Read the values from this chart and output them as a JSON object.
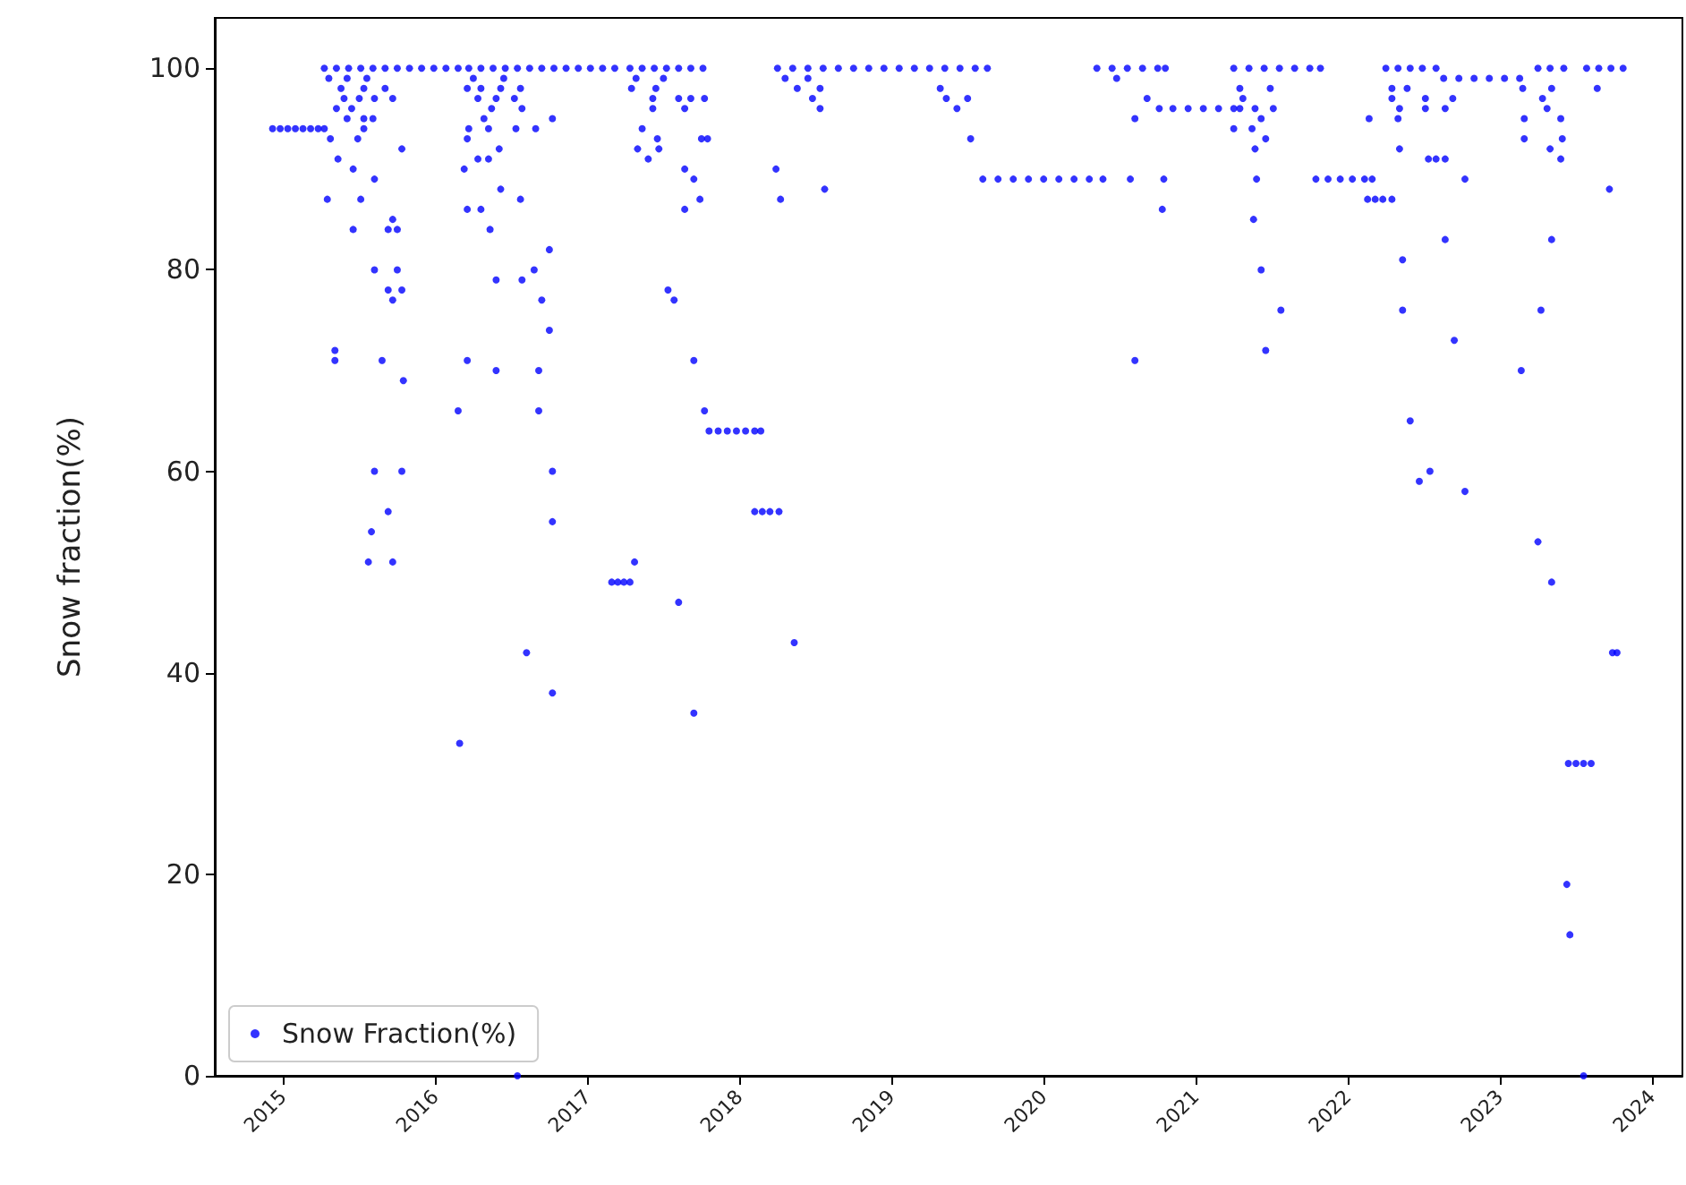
{
  "chart_data": {
    "type": "scatter",
    "ylabel": "Snow fraction(%)",
    "xlim": [
      2014.55,
      2024.2
    ],
    "xticks": [
      2015,
      2016,
      2017,
      2018,
      2019,
      2020,
      2021,
      2022,
      2023,
      2024
    ],
    "ylim": [
      0,
      105
    ],
    "yticks": [
      0,
      20,
      40,
      60,
      80,
      100
    ],
    "grid": false,
    "legend": "bottom left",
    "marker": "circle",
    "series": [
      {
        "name": "Snow Fraction(%)",
        "color": "#0000ff",
        "x": [
          2014.93,
          2014.98,
          2015.03,
          2015.08,
          2015.13,
          2015.18,
          2015.23,
          2015.27,
          2015.27,
          2015.35,
          2015.43,
          2015.51,
          2015.59,
          2015.67,
          2015.75,
          2015.83,
          2015.91,
          2015.99,
          2016.07,
          2016.15,
          2015.3,
          2015.42,
          2015.55,
          2015.38,
          2015.53,
          2015.67,
          2015.4,
          2015.5,
          2015.6,
          2015.72,
          2015.35,
          2015.45,
          2015.42,
          2015.53,
          2015.59,
          2015.53,
          2015.31,
          2015.49,
          2015.78,
          2015.36,
          2015.46,
          2015.6,
          2015.29,
          2015.51,
          2015.72,
          2015.46,
          2015.69,
          2015.75,
          2015.6,
          2015.75,
          2015.69,
          2015.78,
          2015.72,
          2015.34,
          2015.34,
          2015.65,
          2015.79,
          2015.6,
          2015.78,
          2015.69,
          2015.58,
          2015.56,
          2015.72,
          2016.22,
          2016.3,
          2016.38,
          2016.46,
          2016.54,
          2016.62,
          2016.7,
          2016.78,
          2016.86,
          2016.94,
          2017.02,
          2017.1,
          2017.18,
          2016.25,
          2016.45,
          2016.21,
          2016.3,
          2016.43,
          2016.56,
          2016.28,
          2016.4,
          2016.52,
          2016.37,
          2016.57,
          2016.32,
          2016.77,
          2016.22,
          2016.35,
          2016.53,
          2016.66,
          2016.21,
          2016.42,
          2016.28,
          2016.35,
          2016.19,
          2016.43,
          2016.56,
          2016.21,
          2016.3,
          2016.36,
          2016.75,
          2016.65,
          2016.4,
          2016.57,
          2016.7,
          2016.75,
          2016.21,
          2016.4,
          2016.68,
          2016.15,
          2016.68,
          2016.77,
          2016.77,
          2016.6,
          2016.77,
          2016.16,
          2016.54,
          2017.16,
          2017.2,
          2017.24,
          2017.28,
          2017.31,
          2017.28,
          2017.36,
          2017.44,
          2017.52,
          2017.6,
          2017.68,
          2017.76,
          2017.32,
          2017.5,
          2017.29,
          2017.45,
          2017.43,
          2017.6,
          2017.68,
          2017.77,
          2017.43,
          2017.64,
          2017.36,
          2017.46,
          2017.75,
          2017.79,
          2017.33,
          2017.47,
          2017.4,
          2017.64,
          2017.7,
          2017.74,
          2017.64,
          2017.53,
          2017.57,
          2017.7,
          2017.77,
          2017.6,
          2017.7,
          2017.8,
          2017.86,
          2017.92,
          2017.98,
          2018.04,
          2018.1,
          2018.14,
          2018.1,
          2018.15,
          2018.2,
          2018.26,
          2018.25,
          2018.35,
          2018.45,
          2018.55,
          2018.65,
          2018.75,
          2018.85,
          2018.95,
          2019.05,
          2019.15,
          2019.25,
          2019.35,
          2019.45,
          2019.55,
          2019.63,
          2018.3,
          2018.45,
          2018.38,
          2018.53,
          2018.48,
          2018.53,
          2018.24,
          2018.56,
          2018.27,
          2018.36,
          2019.32,
          2019.36,
          2019.5,
          2019.43,
          2019.52,
          2019.6,
          2019.7,
          2019.8,
          2019.9,
          2020.0,
          2020.1,
          2020.2,
          2020.3,
          2020.39,
          2020.57,
          2020.79,
          2020.78,
          2020.6,
          2020.35,
          2020.45,
          2020.55,
          2020.65,
          2020.75,
          2020.8,
          2020.48,
          2020.68,
          2020.6,
          2020.76,
          2020.85,
          2020.95,
          2021.05,
          2021.15,
          2021.25,
          2021.29,
          2021.25,
          2021.35,
          2021.45,
          2021.55,
          2021.65,
          2021.75,
          2021.82,
          2021.29,
          2021.49,
          2021.31,
          2021.39,
          2021.51,
          2021.43,
          2021.25,
          2021.37,
          2021.46,
          2021.39,
          2021.4,
          2021.38,
          2021.43,
          2021.56,
          2021.46,
          2021.79,
          2021.87,
          2021.95,
          2022.03,
          2022.11,
          2022.16,
          2022.13,
          2022.18,
          2022.23,
          2022.29,
          2022.14,
          2022.25,
          2022.33,
          2022.41,
          2022.49,
          2022.58,
          2022.29,
          2022.39,
          2022.29,
          2022.51,
          2022.69,
          2022.34,
          2022.51,
          2022.64,
          2022.33,
          2022.34,
          2022.53,
          2022.58,
          2022.64,
          2022.77,
          2022.64,
          2022.36,
          2022.36,
          2022.7,
          2022.41,
          2022.54,
          2022.47,
          2022.77,
          2022.63,
          2022.73,
          2022.83,
          2022.93,
          2023.03,
          2023.13,
          2023.25,
          2023.33,
          2023.42,
          2023.15,
          2023.34,
          2023.28,
          2023.31,
          2023.16,
          2023.4,
          2023.16,
          2023.41,
          2023.33,
          2023.4,
          2023.34,
          2023.27,
          2023.14,
          2023.25,
          2023.34,
          2023.74,
          2023.77,
          2023.45,
          2023.5,
          2023.55,
          2023.6,
          2023.44,
          2023.46,
          2023.55,
          2023.57,
          2023.65,
          2023.73,
          2023.81,
          2023.64,
          2023.72
        ],
        "values": [
          94,
          94,
          94,
          94,
          94,
          94,
          94,
          94,
          100,
          100,
          100,
          100,
          100,
          100,
          100,
          100,
          100,
          100,
          100,
          100,
          99,
          99,
          99,
          98,
          98,
          98,
          97,
          97,
          97,
          97,
          96,
          96,
          95,
          95,
          95,
          94,
          93,
          93,
          92,
          91,
          90,
          89,
          87,
          87,
          85,
          84,
          84,
          84,
          80,
          80,
          78,
          78,
          77,
          72,
          71,
          71,
          69,
          60,
          60,
          56,
          54,
          51,
          51,
          100,
          100,
          100,
          100,
          100,
          100,
          100,
          100,
          100,
          100,
          100,
          100,
          100,
          99,
          99,
          98,
          98,
          98,
          98,
          97,
          97,
          97,
          96,
          96,
          95,
          95,
          94,
          94,
          94,
          94,
          93,
          92,
          91,
          91,
          90,
          88,
          87,
          86,
          86,
          84,
          82,
          80,
          79,
          79,
          77,
          74,
          71,
          70,
          70,
          66,
          66,
          60,
          55,
          42,
          38,
          33,
          0,
          49,
          49,
          49,
          49,
          51,
          100,
          100,
          100,
          100,
          100,
          100,
          100,
          99,
          99,
          98,
          98,
          97,
          97,
          97,
          97,
          96,
          96,
          94,
          93,
          93,
          93,
          92,
          92,
          91,
          90,
          89,
          87,
          86,
          78,
          77,
          71,
          66,
          47,
          36,
          64,
          64,
          64,
          64,
          64,
          64,
          64,
          56,
          56,
          56,
          56,
          100,
          100,
          100,
          100,
          100,
          100,
          100,
          100,
          100,
          100,
          100,
          100,
          100,
          100,
          100,
          99,
          99,
          98,
          98,
          97,
          96,
          90,
          88,
          87,
          43,
          98,
          97,
          97,
          96,
          93,
          89,
          89,
          89,
          89,
          89,
          89,
          89,
          89,
          89,
          89,
          89,
          86,
          71,
          100,
          100,
          100,
          100,
          100,
          100,
          99,
          97,
          95,
          96,
          96,
          96,
          96,
          96,
          96,
          96,
          100,
          100,
          100,
          100,
          100,
          100,
          100,
          98,
          98,
          97,
          96,
          96,
          95,
          94,
          94,
          93,
          92,
          89,
          85,
          80,
          76,
          72,
          89,
          89,
          89,
          89,
          89,
          89,
          87,
          87,
          87,
          87,
          95,
          100,
          100,
          100,
          100,
          100,
          98,
          98,
          97,
          97,
          97,
          96,
          96,
          96,
          95,
          92,
          91,
          91,
          91,
          89,
          83,
          81,
          76,
          73,
          65,
          60,
          59,
          58,
          99,
          99,
          99,
          99,
          99,
          99,
          100,
          100,
          100,
          98,
          98,
          97,
          96,
          95,
          95,
          93,
          93,
          92,
          91,
          83,
          76,
          70,
          53,
          49,
          42,
          42,
          31,
          31,
          31,
          31,
          19,
          14,
          0,
          100,
          100,
          100,
          100,
          98,
          88
        ]
      }
    ]
  }
}
